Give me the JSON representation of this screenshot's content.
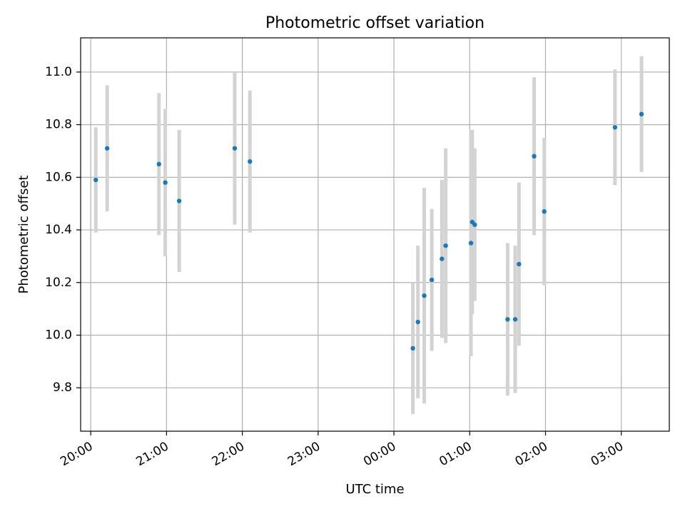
{
  "chart_data": {
    "type": "scatter",
    "title": "Photometric offset variation",
    "xlabel": "UTC time",
    "ylabel": "Photometric offset",
    "x_axis": "time",
    "xlim": [
      "19:52",
      "03:38"
    ],
    "ylim": [
      9.635,
      11.13
    ],
    "xticks": [
      "20:00",
      "21:00",
      "22:00",
      "23:00",
      "00:00",
      "01:00",
      "02:00",
      "03:00"
    ],
    "yticks": [
      9.8,
      10.0,
      10.2,
      10.4,
      10.6,
      10.8,
      11.0
    ],
    "grid": true,
    "colors": {
      "points": "#1f77b4",
      "errorbars": "#d3d3d3",
      "grid": "#b0b0b0"
    },
    "points": [
      {
        "x": "20:04",
        "y": 10.59,
        "err": 0.2
      },
      {
        "x": "20:13",
        "y": 10.71,
        "err": 0.24
      },
      {
        "x": "20:54",
        "y": 10.65,
        "err": 0.27
      },
      {
        "x": "20:59",
        "y": 10.58,
        "err": 0.28
      },
      {
        "x": "21:10",
        "y": 10.51,
        "err": 0.27
      },
      {
        "x": "21:54",
        "y": 10.71,
        "err": 0.29
      },
      {
        "x": "22:06",
        "y": 10.66,
        "err": 0.27
      },
      {
        "x": "00:15",
        "y": 9.95,
        "err": 0.25
      },
      {
        "x": "00:19",
        "y": 10.05,
        "err": 0.29
      },
      {
        "x": "00:24",
        "y": 10.15,
        "err": 0.41
      },
      {
        "x": "00:30",
        "y": 10.21,
        "err": 0.27
      },
      {
        "x": "00:38",
        "y": 10.29,
        "err": 0.3
      },
      {
        "x": "00:41",
        "y": 10.34,
        "err": 0.37
      },
      {
        "x": "01:01",
        "y": 10.35,
        "err": 0.43
      },
      {
        "x": "01:02",
        "y": 10.43,
        "err": 0.35
      },
      {
        "x": "01:04",
        "y": 10.42,
        "err": 0.29
      },
      {
        "x": "01:30",
        "y": 10.06,
        "err": 0.29
      },
      {
        "x": "01:36",
        "y": 10.06,
        "err": 0.28
      },
      {
        "x": "01:39",
        "y": 10.27,
        "err": 0.31
      },
      {
        "x": "01:51",
        "y": 10.68,
        "err": 0.3
      },
      {
        "x": "01:59",
        "y": 10.47,
        "err": 0.28
      },
      {
        "x": "02:55",
        "y": 10.79,
        "err": 0.22
      },
      {
        "x": "03:16",
        "y": 10.84,
        "err": 0.22
      }
    ]
  }
}
